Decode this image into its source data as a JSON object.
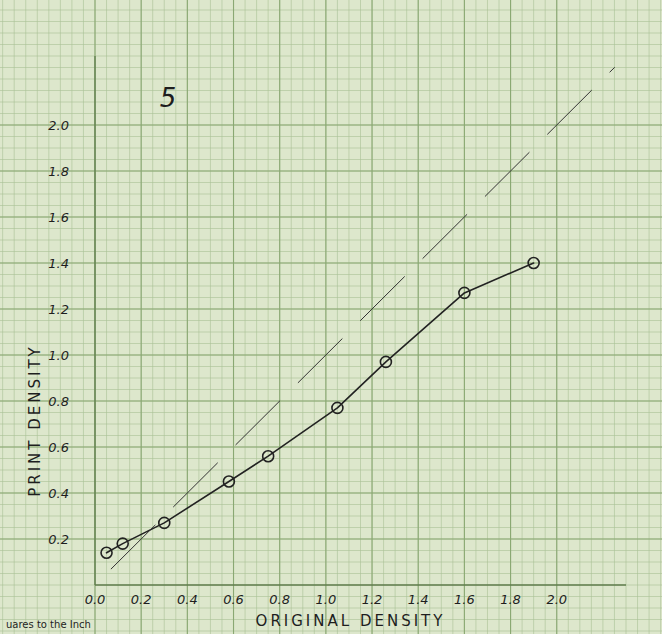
{
  "chart_data": {
    "type": "line",
    "title": "5",
    "x_label": "ORIGINAL DENSITY",
    "y_label": "PRINT DENSITY",
    "annotations": [
      "uares to the Inch"
    ],
    "xlim": [
      0,
      2.3
    ],
    "ylim": [
      0,
      2.3
    ],
    "xticks": [
      {
        "value": 0,
        "label": "0.0"
      },
      0.2,
      0.4,
      0.6,
      0.8,
      {
        "value": 1,
        "label": "1.0"
      },
      1.2,
      1.4,
      1.6,
      1.8,
      {
        "value": 2,
        "label": "2.0"
      }
    ],
    "yticks": [
      0.2,
      0.4,
      0.6,
      0.8,
      {
        "value": 1,
        "label": "1.0"
      },
      1.2,
      1.4,
      1.6,
      1.8,
      {
        "value": 2,
        "label": "2.0"
      }
    ],
    "grid": true,
    "series": [
      {
        "color": "#222222",
        "marker": "circle",
        "line_style": "solid",
        "x": [
          0.05,
          0.12,
          0.3,
          0.58,
          0.75,
          1.05,
          1.26,
          1.6,
          1.9
        ],
        "values": [
          0.14,
          0.18,
          0.27,
          0.45,
          0.56,
          0.77,
          0.97,
          1.27,
          1.4
        ]
      },
      {
        "color": "#333333",
        "marker": "none",
        "line_style": "dashed",
        "x": [
          0.07,
          2.25
        ],
        "values": [
          0.07,
          2.25
        ]
      }
    ]
  }
}
